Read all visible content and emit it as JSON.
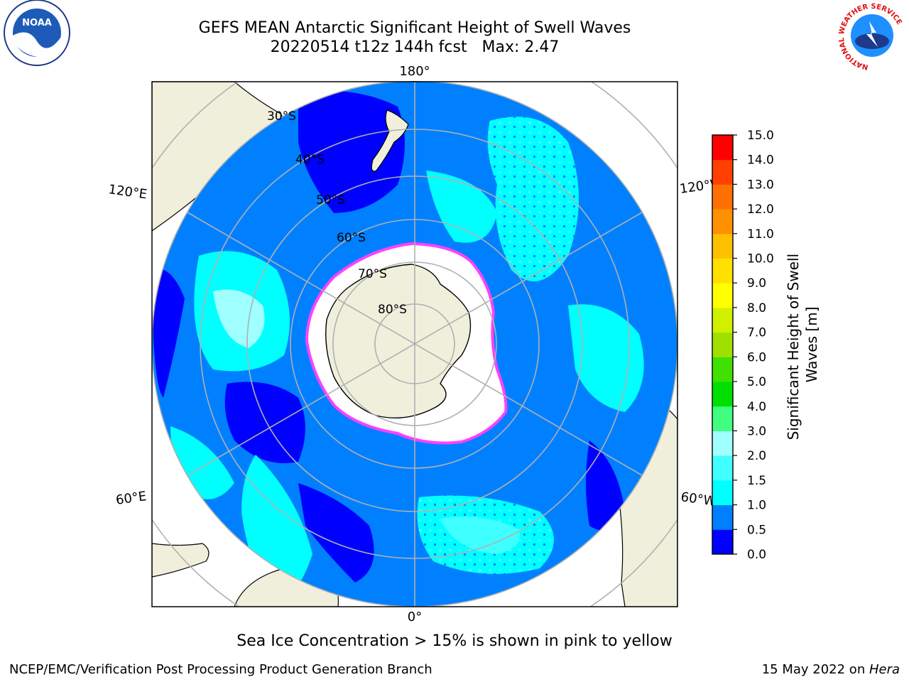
{
  "title": {
    "line1": "GEFS MEAN Antarctic Significant Height of Swell Waves",
    "line2": "20220514 t12z 144h fcst   Max: 2.47"
  },
  "logos": {
    "left": "NOAA",
    "right_ring": "NATIONAL WEATHER SERVICE"
  },
  "map": {
    "projection": "south-polar-stereographic",
    "longitude_labels": {
      "top": "180°",
      "bottom": "0°",
      "upper_left": "120°E",
      "lower_left": "60°E",
      "upper_right": "120°W",
      "lower_right": "60°W"
    },
    "latitude_labels": [
      "30°S",
      "40°S",
      "50°S",
      "60°S",
      "70°S",
      "80°S"
    ]
  },
  "colorbar": {
    "title": "Significant Height of Swell Waves [m]",
    "title_line1": "Significant Height of Swell",
    "title_line2": "Waves [m]",
    "unit": "m",
    "ticks": [
      "0.0",
      "0.5",
      "1.0",
      "1.5",
      "2.0",
      "3.0",
      "4.0",
      "5.0",
      "6.0",
      "7.0",
      "8.0",
      "9.0",
      "10.0",
      "11.0",
      "12.0",
      "13.0",
      "14.0",
      "15.0"
    ],
    "colors": [
      "#0000ff",
      "#0080ff",
      "#00ffff",
      "#40ffff",
      "#a0ffff",
      "#40ff80",
      "#00e000",
      "#40e000",
      "#a0e000",
      "#d0f000",
      "#ffff00",
      "#ffe000",
      "#ffc000",
      "#ff9000",
      "#ff7000",
      "#ff4000",
      "#ff0000"
    ]
  },
  "colors": {
    "land": "#efefdc",
    "ice_free_shelf": "#ffffff",
    "ice_edge": "#ff40ff"
  },
  "caption": "Sea Ice Concentration > 15% is shown in pink to yellow",
  "footer": {
    "left": "NCEP/EMC/Verification Post Processing Product Generation Branch",
    "right_date": "15 May 2022 on ",
    "right_host": "Hera"
  }
}
